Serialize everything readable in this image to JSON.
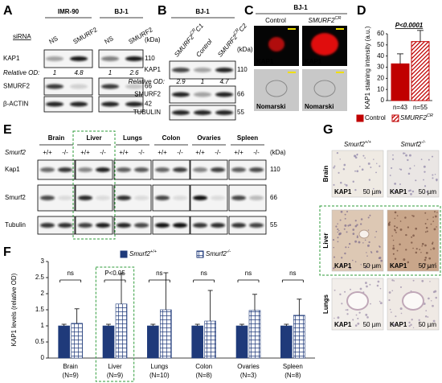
{
  "panels": {
    "A": {
      "letter": "A",
      "cell_lines": [
        "IMR-90",
        "BJ-1"
      ],
      "row_label": "siRNA",
      "lanes": [
        "NS",
        "SMURF2",
        "NS",
        "SMURF2"
      ],
      "kda": "(kDa)",
      "rows": [
        "KAP1",
        "SMURF2",
        "β-ACTIN"
      ],
      "od_label": "Relative OD:",
      "od_values": [
        1,
        4.8,
        1,
        2.6
      ],
      "markers": [
        110,
        66,
        42
      ]
    },
    "B": {
      "letter": "B",
      "cell_line": "BJ-1",
      "lanes": [
        {
          "base": "SMURF2",
          "sup": "CR",
          "sub": "C1"
        },
        "Control",
        {
          "base": "SMURF2",
          "sup": "CR",
          "sub": "C2"
        }
      ],
      "kda": "(kDa)",
      "rows": [
        "KAP1",
        "SMURF2",
        "TUBULIN"
      ],
      "od_label": "Relative OD:",
      "od_values": [
        2.9,
        1,
        4.7
      ],
      "markers": [
        110,
        66,
        55
      ]
    },
    "C": {
      "letter": "C",
      "cell_line": "BJ-1",
      "columns": [
        "Control",
        {
          "base": "SMURF2",
          "sup": "CR"
        }
      ],
      "row_labels": [
        "KAP1",
        "Nomarski"
      ]
    },
    "D": {
      "letter": "D"
    },
    "E": {
      "letter": "E",
      "tissues": [
        "Brain",
        "Liver",
        "Lungs",
        "Colon",
        "Ovaries",
        "Spleen"
      ],
      "gene_label": "Smurf2",
      "genotypes": [
        "+/+",
        "-/-"
      ],
      "rows": [
        "Kap1",
        "Smurf2",
        "Tubulin"
      ],
      "kda": "(kDa)",
      "markers": [
        110,
        66,
        55
      ]
    },
    "F": {
      "letter": "F"
    },
    "G": {
      "letter": "G",
      "columns": [
        {
          "base": "Smurf2",
          "sup": "+/+"
        },
        {
          "base": "Smurf2",
          "sup": "-/-"
        }
      ],
      "rows": [
        "Brain",
        "Liver",
        "Lungs"
      ],
      "stain": "KAP1",
      "scale": "50 µm"
    }
  },
  "chart_data": [
    {
      "type": "bar",
      "ylabel": "KAP1 staining intensity (a.u.)",
      "ylim": [
        0,
        60
      ],
      "yticks": [
        0,
        10,
        20,
        30,
        40,
        50,
        60
      ],
      "annotation": "P<0.0001",
      "n_labels": [
        "n=43",
        "n=55"
      ],
      "series": [
        {
          "name": "Control",
          "color": "#c00000",
          "values": [
            33
          ],
          "errors": [
            9
          ]
        },
        {
          "name": "SMURF2",
          "name_sup": "CR",
          "color": "#c00000",
          "hatch": "diagonal",
          "values": [
            53
          ],
          "errors": [
            10
          ]
        }
      ]
    },
    {
      "type": "bar",
      "ylabel": "KAP1 levels (relative OD)",
      "ylim": [
        0,
        3
      ],
      "yticks": [
        0,
        0.5,
        1,
        1.5,
        2,
        2.5,
        3
      ],
      "categories": [
        "Brain",
        "Liver",
        "Lungs",
        "Colon",
        "Ovaries",
        "Spleen"
      ],
      "n_labels": [
        "(N=9)",
        "(N=9)",
        "(N=10)",
        "(N=8)",
        "(N=3)",
        "(N=8)"
      ],
      "annotations": [
        "ns",
        "P<0.05",
        "ns",
        "ns",
        "ns",
        "ns"
      ],
      "series": [
        {
          "name": "Smurf2",
          "name_sup": "+/+",
          "color": "#1f3a7a",
          "values": [
            1,
            1,
            1,
            1,
            1,
            1
          ],
          "errors": [
            0.05,
            0.05,
            0.05,
            0.05,
            0.05,
            0.05
          ]
        },
        {
          "name": "Smurf2",
          "name_sup": "-/-",
          "color": "#1f3a7a",
          "hatch": "grid",
          "values": [
            1.08,
            1.68,
            1.5,
            1.15,
            1.48,
            1.33
          ],
          "errors": [
            0.45,
            0.95,
            1.15,
            0.95,
            0.5,
            0.5
          ]
        }
      ]
    }
  ]
}
